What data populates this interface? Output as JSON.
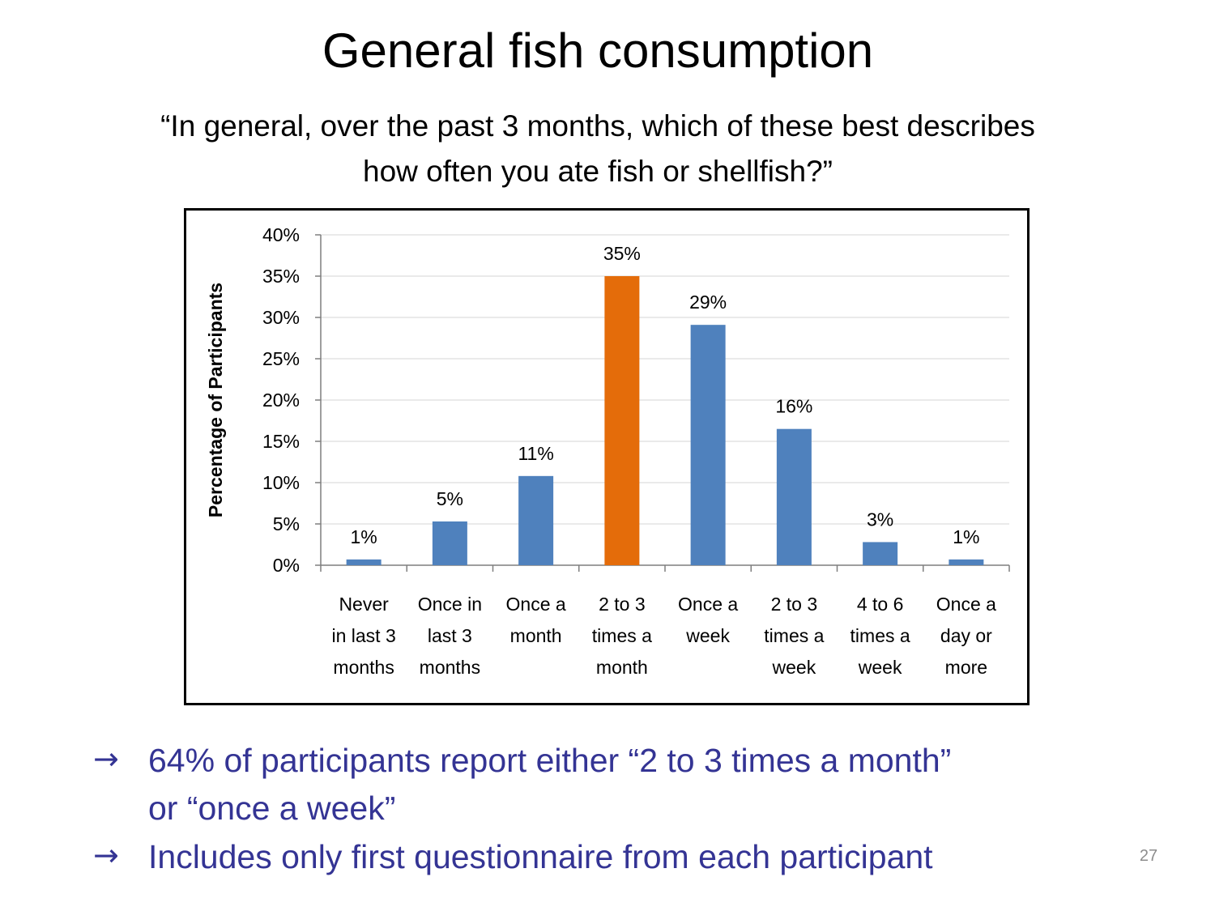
{
  "slide": {
    "title": "General fish consumption",
    "question_lines": [
      "“In general, over the past 3 months, which of these best describes",
      "how often you ate fish or shellfish?”"
    ],
    "bullets": [
      [
        "64% of participants report either “2 to 3 times a month”",
        "or “once a week”"
      ],
      [
        "Includes only first questionnaire from each participant"
      ]
    ],
    "bullet_icon": "right-arrow-icon",
    "page_number": "27",
    "colors": {
      "bar": "#4f81bd",
      "highlight_bar": "#e46c0a",
      "bullet_text": "#343494"
    }
  },
  "chart_data": {
    "type": "bar",
    "title": "",
    "xlabel": "",
    "ylabel": "Percentage of Participants",
    "ylim": [
      0,
      40
    ],
    "yticks": [
      "0%",
      "5%",
      "10%",
      "15%",
      "20%",
      "25%",
      "30%",
      "35%",
      "40%"
    ],
    "grid": true,
    "legend": "none",
    "categories": [
      [
        "Never",
        "in last 3",
        "months"
      ],
      [
        "Once in",
        "last 3",
        "months"
      ],
      [
        "Once a",
        "month"
      ],
      [
        "2 to 3",
        "times a",
        "month"
      ],
      [
        "Once a",
        "week"
      ],
      [
        "2 to 3",
        "times a",
        "week"
      ],
      [
        "4 to 6",
        "times a",
        "week"
      ],
      [
        "Once a",
        "day or",
        "more"
      ]
    ],
    "values": [
      0.7,
      5.3,
      10.8,
      35.0,
      29.1,
      16.5,
      2.8,
      0.7
    ],
    "data_labels": [
      "1%",
      "5%",
      "11%",
      "35%",
      "29%",
      "16%",
      "3%",
      "1%"
    ],
    "highlight_index": 3
  }
}
